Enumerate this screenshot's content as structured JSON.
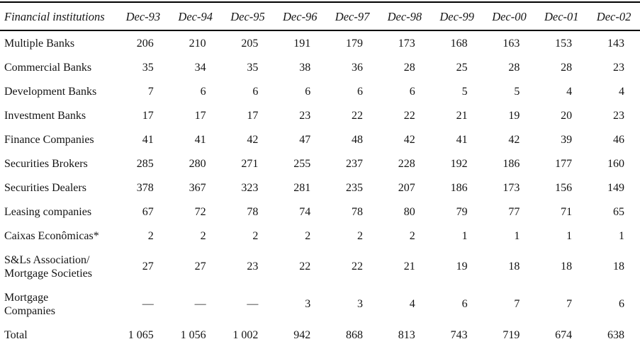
{
  "page": {
    "background_color": "#ffffff",
    "text_color": "#141414",
    "rule_color": "#000000"
  },
  "table": {
    "header": [
      "Financial institutions",
      "Dec-93",
      "Dec-94",
      "Dec-95",
      "Dec-96",
      "Dec-97",
      "Dec-98",
      "Dec-99",
      "Dec-00",
      "Dec-01",
      "Dec-02"
    ],
    "rows": [
      {
        "label": "Multiple Banks",
        "values": [
          "206",
          "210",
          "205",
          "191",
          "179",
          "173",
          "168",
          "163",
          "153",
          "143"
        ]
      },
      {
        "label": "Commercial Banks",
        "values": [
          "35",
          "34",
          "35",
          "38",
          "36",
          "28",
          "25",
          "28",
          "28",
          "23"
        ]
      },
      {
        "label": "Development Banks",
        "values": [
          "7",
          "6",
          "6",
          "6",
          "6",
          "6",
          "5",
          "5",
          "4",
          "4"
        ]
      },
      {
        "label": "Investment Banks",
        "values": [
          "17",
          "17",
          "17",
          "23",
          "22",
          "22",
          "21",
          "19",
          "20",
          "23"
        ]
      },
      {
        "label": "Finance Companies",
        "values": [
          "41",
          "41",
          "42",
          "47",
          "48",
          "42",
          "41",
          "42",
          "39",
          "46"
        ]
      },
      {
        "label": "Securities Brokers",
        "values": [
          "285",
          "280",
          "271",
          "255",
          "237",
          "228",
          "192",
          "186",
          "177",
          "160"
        ]
      },
      {
        "label": "Securities Dealers",
        "values": [
          "378",
          "367",
          "323",
          "281",
          "235",
          "207",
          "186",
          "173",
          "156",
          "149"
        ]
      },
      {
        "label": "Leasing companies",
        "values": [
          "67",
          "72",
          "78",
          "74",
          "78",
          "80",
          "79",
          "77",
          "71",
          "65"
        ]
      },
      {
        "label": "Caixas Econômicas*",
        "values": [
          "2",
          "2",
          "2",
          "2",
          "2",
          "2",
          "1",
          "1",
          "1",
          "1"
        ]
      },
      {
        "label": "S&Ls Association/\nMortgage Societies",
        "values": [
          "27",
          "27",
          "23",
          "22",
          "22",
          "21",
          "19",
          "18",
          "18",
          "18"
        ]
      },
      {
        "label": "Mortgage\nCompanies",
        "values": [
          "—",
          "—",
          "—",
          "3",
          "3",
          "4",
          "6",
          "7",
          "7",
          "6"
        ]
      },
      {
        "label": "Total",
        "values": [
          "1 065",
          "1 056",
          "1 002",
          "942",
          "868",
          "813",
          "743",
          "719",
          "674",
          "638"
        ]
      }
    ]
  }
}
